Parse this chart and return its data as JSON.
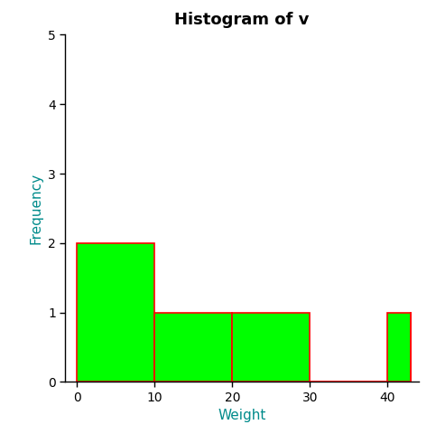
{
  "title": "Histogram of v",
  "xlabel": "Weight",
  "ylabel": "Frequency",
  "bar_edges": [
    0,
    10,
    20,
    30,
    40,
    43
  ],
  "bar_heights": [
    2,
    1,
    1,
    0,
    1
  ],
  "bar_color": "#00FF00",
  "bar_edgecolor": "#FF0000",
  "ylim": [
    0,
    5
  ],
  "xlim": [
    -1.5,
    44
  ],
  "yticks": [
    0,
    1,
    2,
    3,
    4,
    5
  ],
  "xticks": [
    0,
    10,
    20,
    30,
    40
  ],
  "bg_color": "#FFFFFF",
  "title_fontsize": 13,
  "label_fontsize": 11,
  "tick_fontsize": 10,
  "axis_label_color": "#008B8B",
  "title_color": "#000000"
}
